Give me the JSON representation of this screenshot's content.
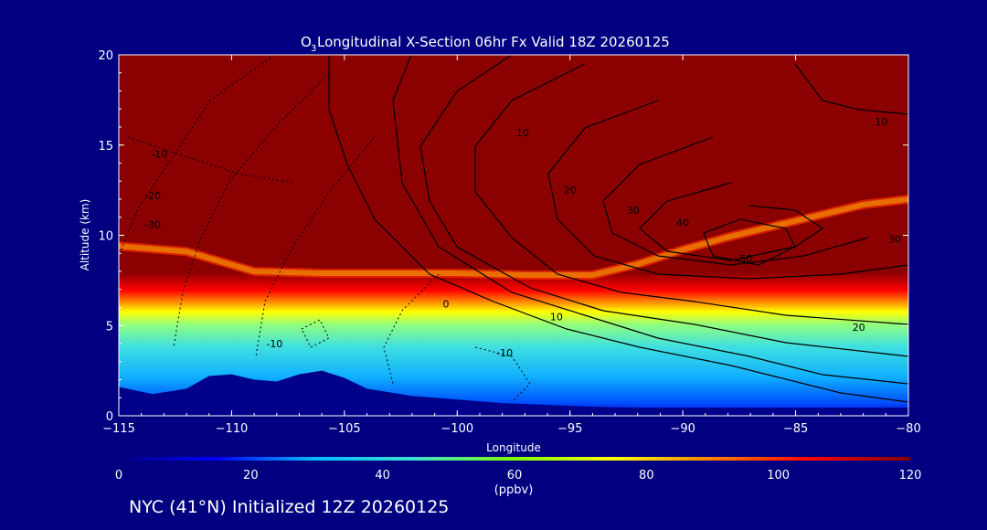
{
  "chart_data": {
    "type": "heatmap",
    "title_prefix": "O",
    "title_sub": "3",
    "title_rest": " Longitudinal X-Section 06hr  Fx Valid 18Z 20260125",
    "xlabel": "Longitude",
    "ylabel": "Altitude (km)",
    "xlim": [
      -115,
      -80
    ],
    "ylim": [
      0,
      20
    ],
    "x_ticks": [
      -115,
      -110,
      -105,
      -100,
      -95,
      -90,
      -85,
      -80
    ],
    "x_tick_labels": [
      "−115",
      "−110",
      "−105",
      "−100",
      "−95",
      "−90",
      "−85",
      "−80"
    ],
    "y_ticks": [
      0,
      5,
      10,
      15,
      20
    ],
    "y_tick_labels": [
      "0",
      "5",
      "10",
      "15",
      "20"
    ],
    "colorbar": {
      "range": [
        0,
        120
      ],
      "ticks": [
        0,
        20,
        40,
        60,
        80,
        100,
        120
      ],
      "tick_labels": [
        "0",
        "20",
        "40",
        "60",
        "80",
        "100",
        "120"
      ],
      "units": "(ppbv)",
      "colors": [
        "#000080",
        "#0000ff",
        "#00bfff",
        "#40e0d0",
        "#7fff00",
        "#ffff00",
        "#ff8000",
        "#ff0000",
        "#800000"
      ]
    },
    "ozone_boundary_km": {
      "lon": [
        -115,
        -112,
        -109,
        -106,
        -103,
        -100,
        -97,
        -94,
        -92,
        -90,
        -88,
        -85,
        -82,
        -80
      ],
      "alt": [
        9.4,
        9.1,
        8.0,
        7.9,
        7.9,
        7.9,
        7.8,
        7.8,
        8.4,
        9.2,
        9.9,
        10.8,
        11.7,
        12.0
      ]
    },
    "terrain_km": {
      "lon": [
        -115,
        -113.5,
        -112,
        -111,
        -110,
        -109,
        -108,
        -107,
        -106,
        -105,
        -104,
        -102,
        -100,
        -98,
        -96,
        -94,
        -92,
        -90,
        -88,
        -85,
        -82,
        -80
      ],
      "alt": [
        1.6,
        1.2,
        1.5,
        2.2,
        2.3,
        2.0,
        1.9,
        2.3,
        2.5,
        2.1,
        1.5,
        1.1,
        0.9,
        0.7,
        0.6,
        0.5,
        0.45,
        0.45,
        0.45,
        0.45,
        0.45,
        0.45
      ]
    },
    "contour_labels": [
      {
        "text": "-10",
        "lon": -113.2,
        "alt": 14.3
      },
      {
        "text": "-20",
        "lon": -113.5,
        "alt": 12.0
      },
      {
        "text": "-30",
        "lon": -113.5,
        "alt": 10.4
      },
      {
        "text": "-10",
        "lon": -108.1,
        "alt": 3.8
      },
      {
        "text": "0",
        "lon": -100.5,
        "alt": 6.0
      },
      {
        "text": "10",
        "lon": -95.6,
        "alt": 5.3
      },
      {
        "text": "-10",
        "lon": -97.9,
        "alt": 3.3
      },
      {
        "text": "10",
        "lon": -97.1,
        "alt": 15.5
      },
      {
        "text": "20",
        "lon": -95.0,
        "alt": 12.3
      },
      {
        "text": "30",
        "lon": -92.2,
        "alt": 11.2
      },
      {
        "text": "40",
        "lon": -90.0,
        "alt": 10.5
      },
      {
        "text": "50",
        "lon": -87.2,
        "alt": 8.5
      },
      {
        "text": "10",
        "lon": -81.2,
        "alt": 16.1
      },
      {
        "text": "30",
        "lon": -80.6,
        "alt": 9.6
      },
      {
        "text": "20",
        "lon": -82.2,
        "alt": 4.7
      }
    ]
  },
  "footer": {
    "caption": "NYC (41°N) Initialized 12Z 20260125"
  }
}
